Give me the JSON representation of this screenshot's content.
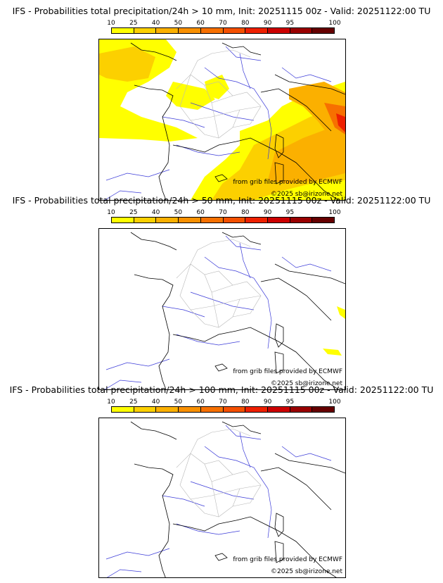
{
  "colorbar": {
    "labels": [
      "10",
      "25",
      "40",
      "50",
      "60",
      "70",
      "80",
      "90",
      "95",
      "100"
    ],
    "colors": [
      "#ffff00",
      "#fcd000",
      "#fbb000",
      "#f99000",
      "#f77000",
      "#f45000",
      "#ee2000",
      "#cc0000",
      "#990000",
      "#660000"
    ]
  },
  "credits": {
    "source": "from grib files provided by ECMWF",
    "copyright": "©2025 sb@irizone.net"
  },
  "panels": [
    {
      "title": "IFS - Probabilities total precipitation/24h > 10 mm, Init: 20251115 00z - Valid: 20251122:00 TU",
      "threshold_mm": 10
    },
    {
      "title": "IFS - Probabilities total precipitation/24h > 50 mm, Init: 20251115 00z - Valid: 20251122:00 TU",
      "threshold_mm": 50
    },
    {
      "title": "IFS - Probabilities total precipitation/24h > 100 mm, Init: 20251115 00z - Valid: 20251122:00 TU",
      "threshold_mm": 100
    }
  ]
}
